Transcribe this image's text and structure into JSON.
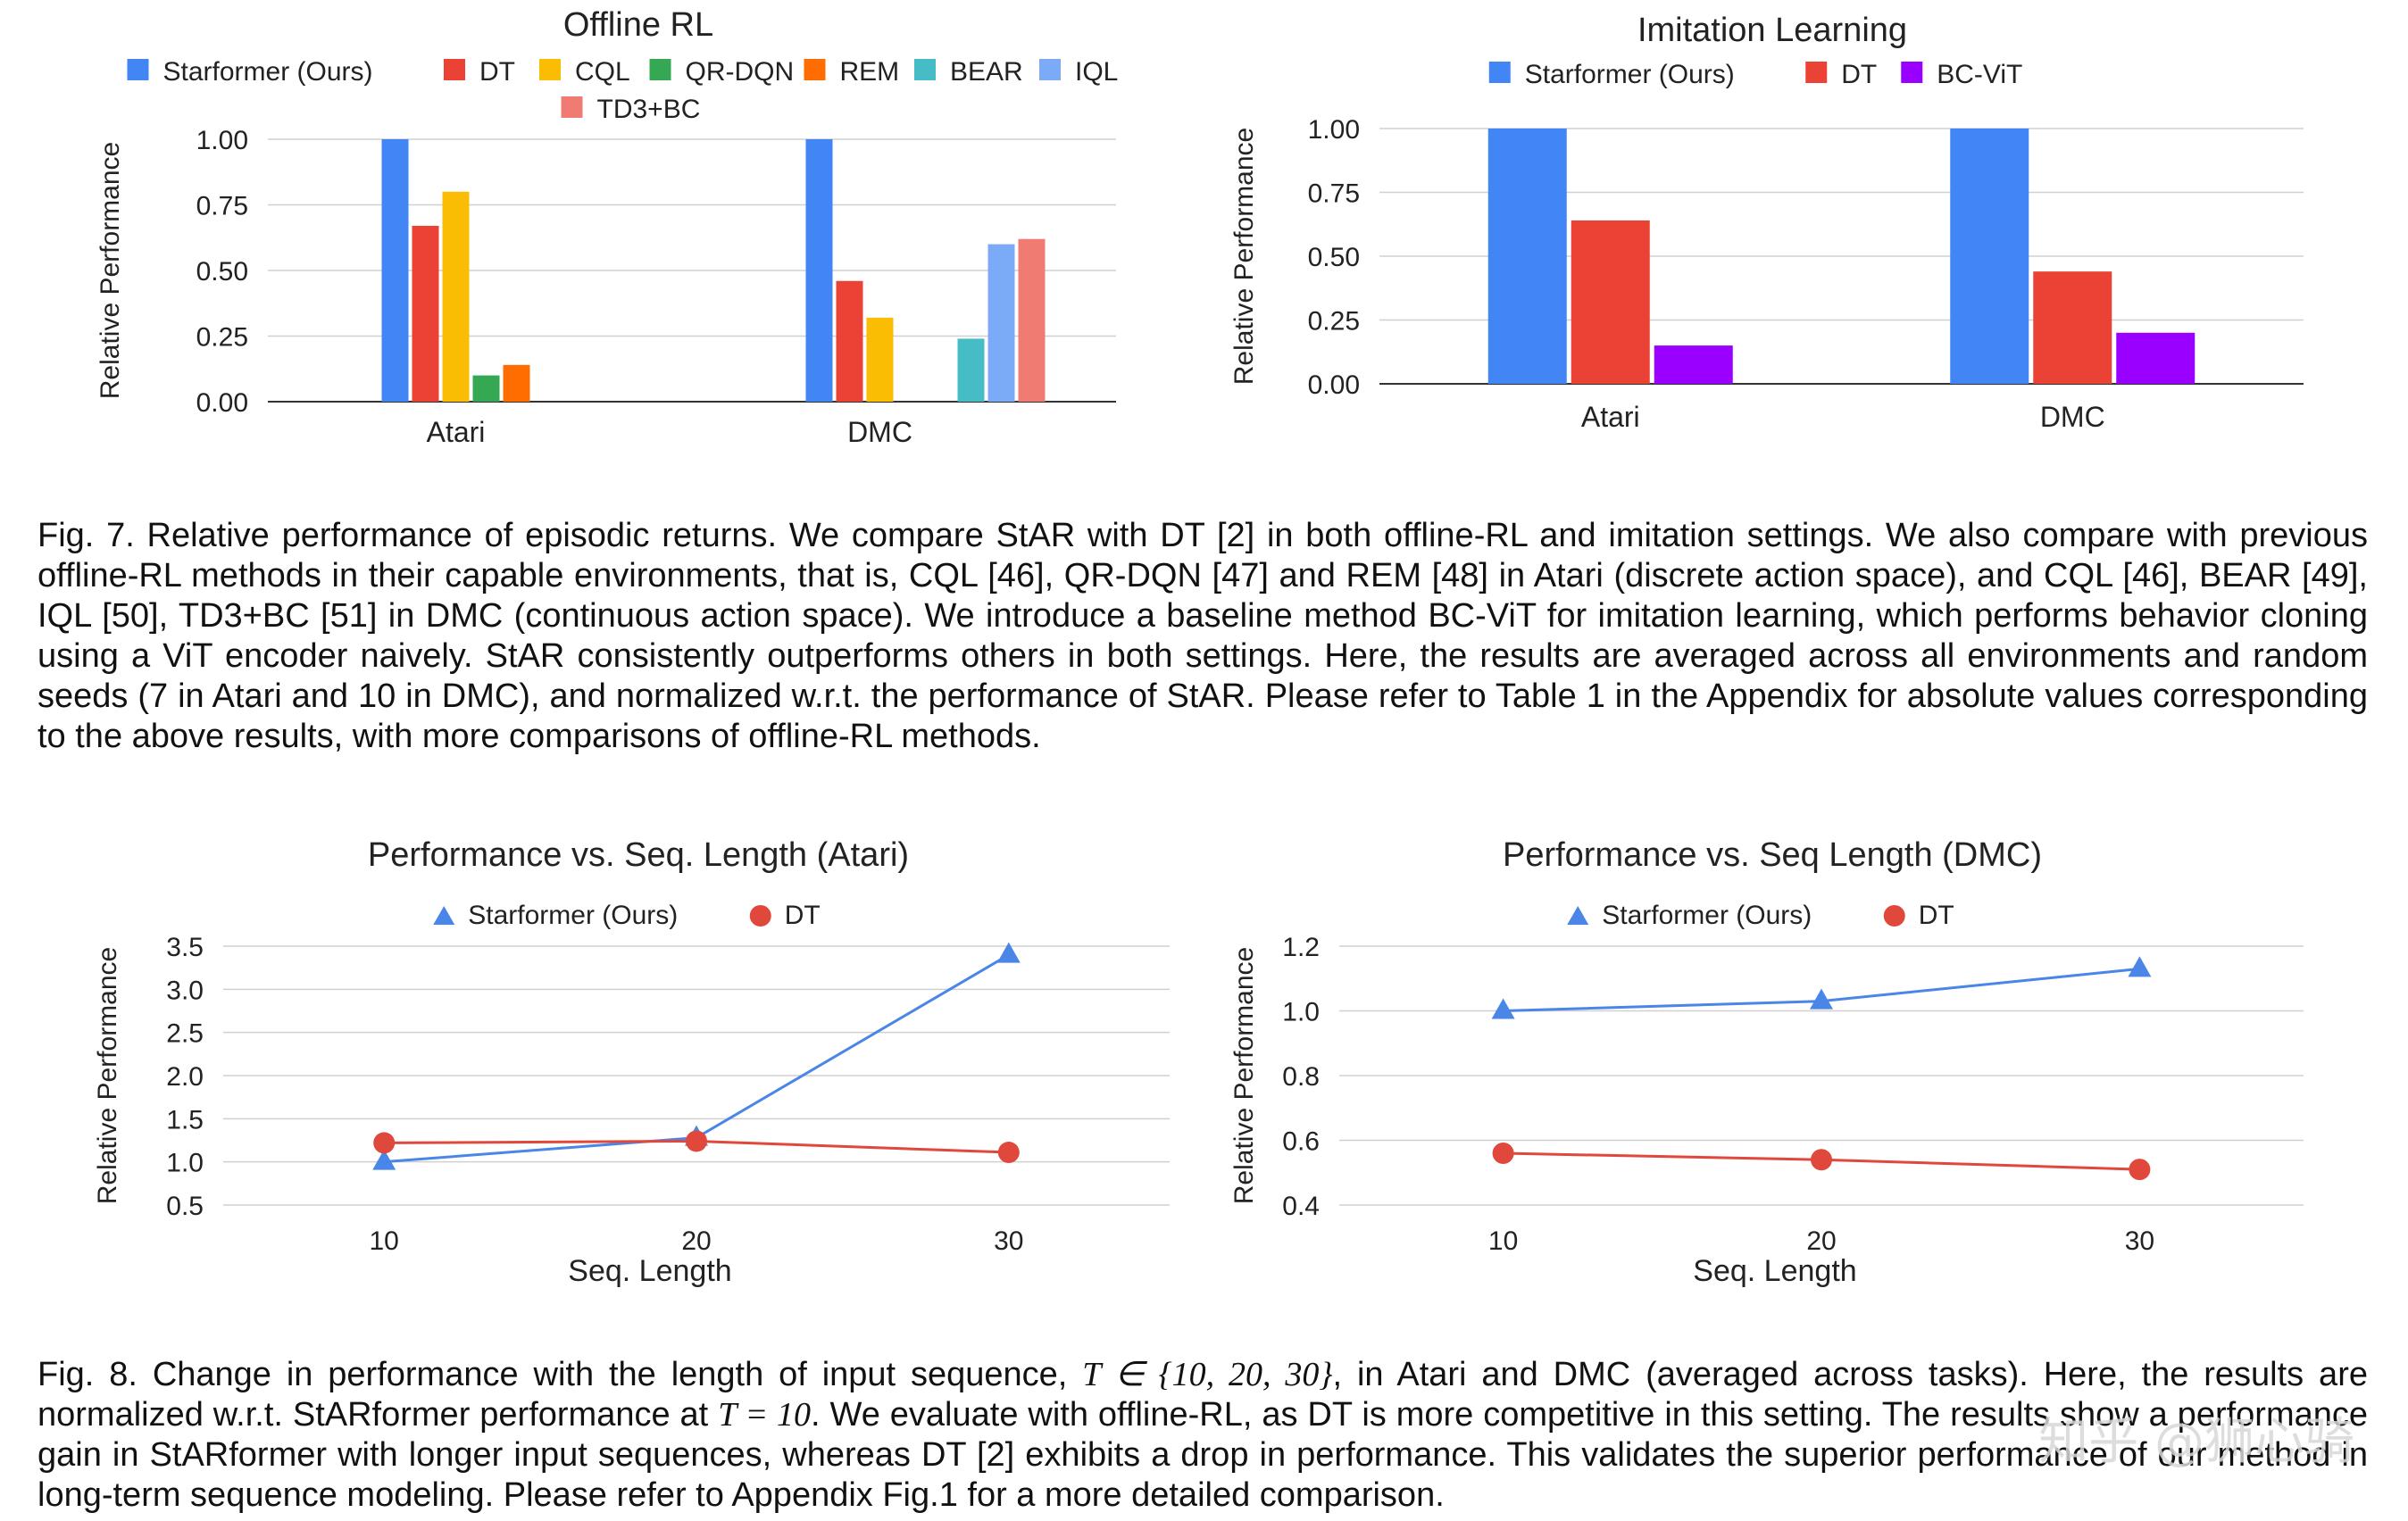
{
  "figures": {
    "fig7_caption": "Fig. 7. Relative performance of episodic returns. We compare StAR with DT [2] in both offline-RL and imitation settings. We also compare with previous offline-RL methods in their capable environments, that is, CQL [46], QR-DQN [47] and REM [48] in Atari (discrete action space), and CQL [46], BEAR [49], IQL [50], TD3+BC [51] in DMC (continuous action space). We introduce a baseline method BC-ViT for imitation learning, which performs behavior cloning using a ViT encoder naively. StAR consistently outperforms others in both settings. Here, the results are averaged across all environments and random seeds (7 in Atari and 10 in DMC), and normalized w.r.t. the performance of StAR. Please refer to Table 1 in the Appendix for absolute values corresponding to the above results, with more comparisons of offline-RL methods.",
    "fig8_caption_a": "Fig. 8. Change in performance with the length of input sequence, ",
    "fig8_caption_math1": "T ∈ {10, 20, 30}",
    "fig8_caption_b": ", in Atari and DMC (averaged across tasks). Here, the results are normalized w.r.t. StARformer performance at ",
    "fig8_caption_math2": "T = 10",
    "fig8_caption_c": ". We evaluate with offline-RL, as DT is more competitive in this setting. The results show a performance gain in StARformer with longer input sequences, whereas DT [2] exhibits a drop in performance. This validates the superior performance of our method in long-term sequence modeling. Please refer to Appendix Fig.1 for a more detailed comparison."
  },
  "watermark": "知乎 @狮心骑",
  "chart_data": [
    {
      "id": "offline",
      "type": "bar",
      "title": "Offline RL",
      "ylabel": "Relative Performance",
      "xlabel": "",
      "ylim": [
        0,
        1.0
      ],
      "yticks": [
        "0.00",
        "0.25",
        "0.50",
        "0.75",
        "1.00"
      ],
      "grid": true,
      "legend_position": "top",
      "categories": [
        "Atari",
        "DMC"
      ],
      "series": [
        {
          "name": "Starformer (Ours)",
          "color": "#4285f4",
          "values": [
            1.0,
            1.0
          ]
        },
        {
          "name": "DT",
          "color": "#ea4335",
          "values": [
            0.67,
            0.46
          ]
        },
        {
          "name": "CQL",
          "color": "#fbbc04",
          "values": [
            0.8,
            0.32
          ]
        },
        {
          "name": "QR-DQN",
          "color": "#34a853",
          "values": [
            0.1,
            null
          ]
        },
        {
          "name": "REM",
          "color": "#ff6d01",
          "values": [
            0.14,
            null
          ]
        },
        {
          "name": "BEAR",
          "color": "#46bdc6",
          "values": [
            null,
            0.24
          ]
        },
        {
          "name": "IQL",
          "color": "#7baaf7",
          "values": [
            null,
            0.6
          ]
        },
        {
          "name": "TD3+BC",
          "color": "#f07b72",
          "values": [
            null,
            0.62
          ]
        }
      ]
    },
    {
      "id": "imitation",
      "type": "bar",
      "title": "Imitation Learning",
      "ylabel": "Relative Performance",
      "xlabel": "",
      "ylim": [
        0,
        1.0
      ],
      "yticks": [
        "0.00",
        "0.25",
        "0.50",
        "0.75",
        "1.00"
      ],
      "grid": true,
      "legend_position": "top",
      "categories": [
        "Atari",
        "DMC"
      ],
      "series": [
        {
          "name": "Starformer (Ours)",
          "color": "#4285f4",
          "values": [
            1.0,
            1.0
          ]
        },
        {
          "name": "DT",
          "color": "#ea4335",
          "values": [
            0.64,
            0.44
          ]
        },
        {
          "name": "BC-ViT",
          "color": "#9900ff",
          "values": [
            0.15,
            0.2
          ]
        }
      ]
    },
    {
      "id": "seq_atari",
      "type": "line",
      "title": "Performance vs. Seq. Length (Atari)",
      "ylabel": "Relative Performance",
      "xlabel": "Seq. Length",
      "x": [
        10,
        20,
        30
      ],
      "xticks": [
        "10",
        "20",
        "30"
      ],
      "ylim": [
        0.5,
        3.5
      ],
      "yticks": [
        "0.5",
        "1.0",
        "1.5",
        "2.0",
        "2.5",
        "3.0",
        "3.5"
      ],
      "grid": true,
      "legend_position": "top",
      "series": [
        {
          "name": "Starformer (Ours)",
          "color": "#4a86e8",
          "marker": "triangle",
          "values": [
            1.0,
            1.28,
            3.4
          ]
        },
        {
          "name": "DT",
          "color": "#e0483c",
          "marker": "circle",
          "values": [
            1.22,
            1.24,
            1.11
          ]
        }
      ]
    },
    {
      "id": "seq_dmc",
      "type": "line",
      "title": "Performance vs. Seq Length (DMC)",
      "ylabel": "Relative Performance",
      "xlabel": "Seq. Length",
      "x": [
        10,
        20,
        30
      ],
      "xticks": [
        "10",
        "20",
        "30"
      ],
      "ylim": [
        0.4,
        1.2
      ],
      "yticks": [
        "0.4",
        "0.6",
        "0.8",
        "1.0",
        "1.2"
      ],
      "grid": true,
      "legend_position": "top",
      "series": [
        {
          "name": "Starformer (Ours)",
          "color": "#4a86e8",
          "marker": "triangle",
          "values": [
            1.0,
            1.03,
            1.13
          ]
        },
        {
          "name": "DT",
          "color": "#e0483c",
          "marker": "circle",
          "values": [
            0.56,
            0.54,
            0.51
          ]
        }
      ]
    }
  ]
}
